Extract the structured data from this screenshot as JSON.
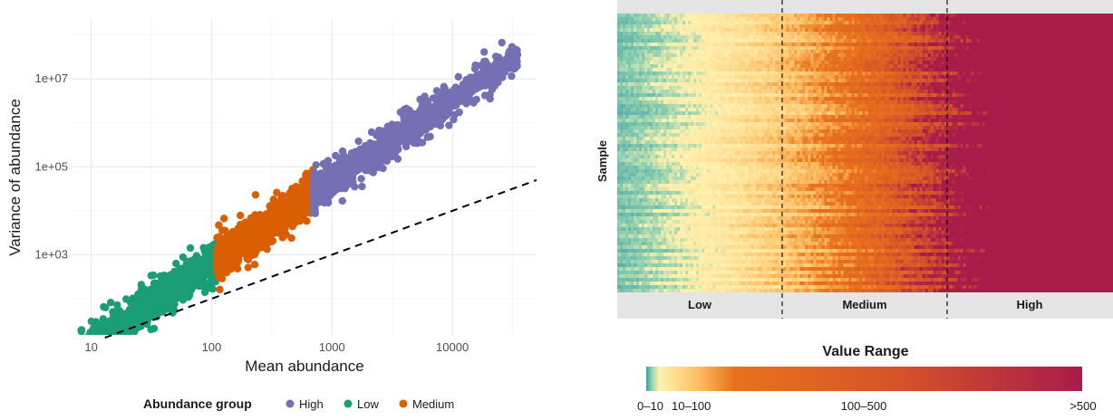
{
  "chart_data": [
    {
      "type": "scatter",
      "xlabel": "Mean abundance",
      "ylabel": "Variance of abundance",
      "x_scale": "log10",
      "y_scale": "log10",
      "xlim": [
        7,
        50000
      ],
      "ylim": [
        15,
        220000000
      ],
      "x_ticks": [
        10,
        100,
        1000,
        10000
      ],
      "x_tick_labels": [
        "10",
        "100",
        "1000",
        "10000"
      ],
      "y_ticks": [
        1000,
        100000,
        10000000
      ],
      "y_tick_labels": [
        "1e+03",
        "1e+05",
        "1e+07"
      ],
      "grid": true,
      "reference_line": {
        "style": "dashed",
        "relation": "y = x",
        "points": [
          [
            13,
            13
          ],
          [
            50000,
            50000
          ]
        ]
      },
      "legend": {
        "title": "Abundance group",
        "position": "bottom",
        "items": [
          {
            "label": "High",
            "color": "#7570b3"
          },
          {
            "label": "Low",
            "color": "#1b9e77"
          },
          {
            "label": "Medium",
            "color": "#d95f02"
          }
        ]
      },
      "series": [
        {
          "name": "Low",
          "color": "#1b9e77",
          "x_range": [
            8,
            115
          ],
          "slope_loglog": 1.85,
          "intercept_log10": -0.88,
          "spread_log10": 0.35
        },
        {
          "name": "Medium",
          "color": "#d95f02",
          "x_range": [
            110,
            700
          ],
          "slope_loglog": 1.85,
          "intercept_log10": -0.88,
          "spread_log10": 0.35
        },
        {
          "name": "High",
          "color": "#7570b3",
          "x_range": [
            700,
            35000
          ],
          "slope_loglog": 1.85,
          "intercept_log10": -0.88,
          "spread_log10": 0.3
        }
      ]
    },
    {
      "type": "heatmap",
      "ylabel": "Sample",
      "column_groups": [
        "Low",
        "Medium",
        "High"
      ],
      "color_scale": {
        "title": "Value Range",
        "labels": [
          "0–10",
          "10–100",
          "100–500",
          ">500"
        ],
        "stops": [
          {
            "value": 0,
            "color": "#3a9ca8"
          },
          {
            "value": 5,
            "color": "#8fd0b0"
          },
          {
            "value": 10,
            "color": "#fff2b0"
          },
          {
            "value": 50,
            "color": "#fdbe64"
          },
          {
            "value": 100,
            "color": "#e8731c"
          },
          {
            "value": 300,
            "color": "#d4502a"
          },
          {
            "value": 500,
            "color": "#a81c4a"
          }
        ]
      }
    }
  ]
}
